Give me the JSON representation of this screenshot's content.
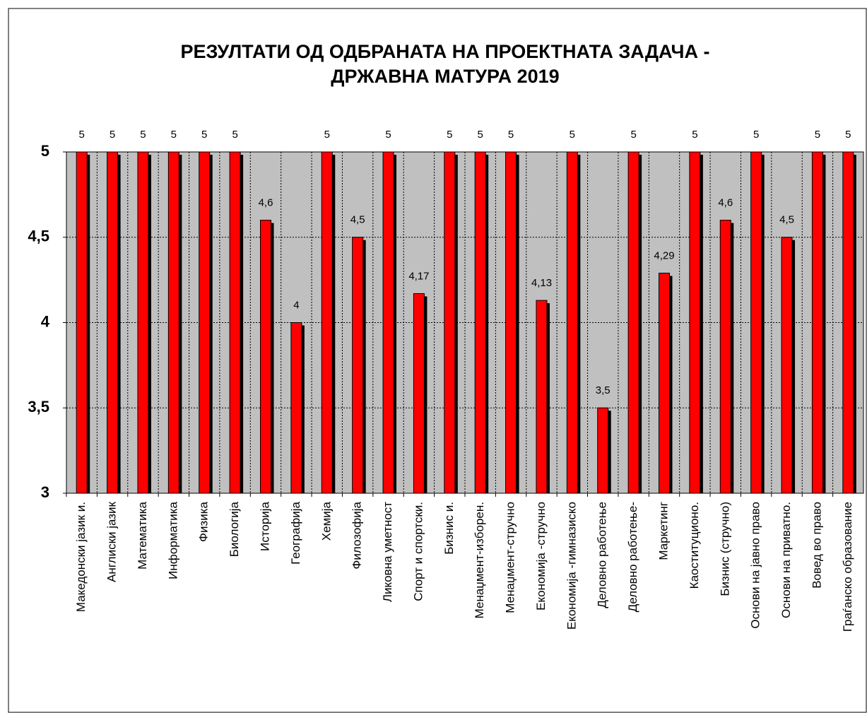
{
  "chart_data": {
    "type": "bar",
    "title": [
      "РЕЗУЛТАТИ  ОД  ОДБРАНАТА  НА  ПРОЕКТНАТА  ЗАДАЧА  -",
      "ДРЖАВНА МАТУРА  2019"
    ],
    "categories": [
      "Македонски јазик и.",
      "Англиски јазик",
      "Математика",
      "Информатика",
      "Физика",
      "Биологија",
      "Историја",
      "Географија",
      "Хемија",
      "Филозофија",
      "Ликовна уметност",
      "Спорт и спортски.",
      "Бизнис и.",
      "Менаџмент-изборен.",
      "Менаџмент-стручно",
      "Економија -стручно",
      "Економија -гимназиско",
      "Деловно работење",
      "Деловно работење-",
      "Маркетинг",
      "Каоституционо.",
      "Бизнис (стручно)",
      "Основи на јавно право",
      "Основи на приватно.",
      "Вовед во право",
      "Граѓанско образование"
    ],
    "values": [
      5,
      5,
      5,
      5,
      5,
      5,
      4.6,
      4,
      5,
      4.5,
      5,
      4.17,
      5,
      5,
      5,
      4.13,
      5,
      3.5,
      5,
      4.29,
      5,
      4.6,
      5,
      4.5,
      5,
      5
    ],
    "value_labels": [
      "5",
      "5",
      "5",
      "5",
      "5",
      "5",
      "4,6",
      "4",
      "5",
      "4,5",
      "5",
      "4,17",
      "5",
      "5",
      "5",
      "4,13",
      "5",
      "3,5",
      "5",
      "4,29",
      "5",
      "4,6",
      "5",
      "4,5",
      "5",
      "5"
    ],
    "color": "#ff0000",
    "ylim": [
      3,
      5
    ],
    "yticks": [
      3,
      {
        "value": 3.5,
        "label": "3,5"
      },
      4,
      {
        "value": 4.5,
        "label": "4,5"
      },
      5
    ],
    "grid": true
  }
}
